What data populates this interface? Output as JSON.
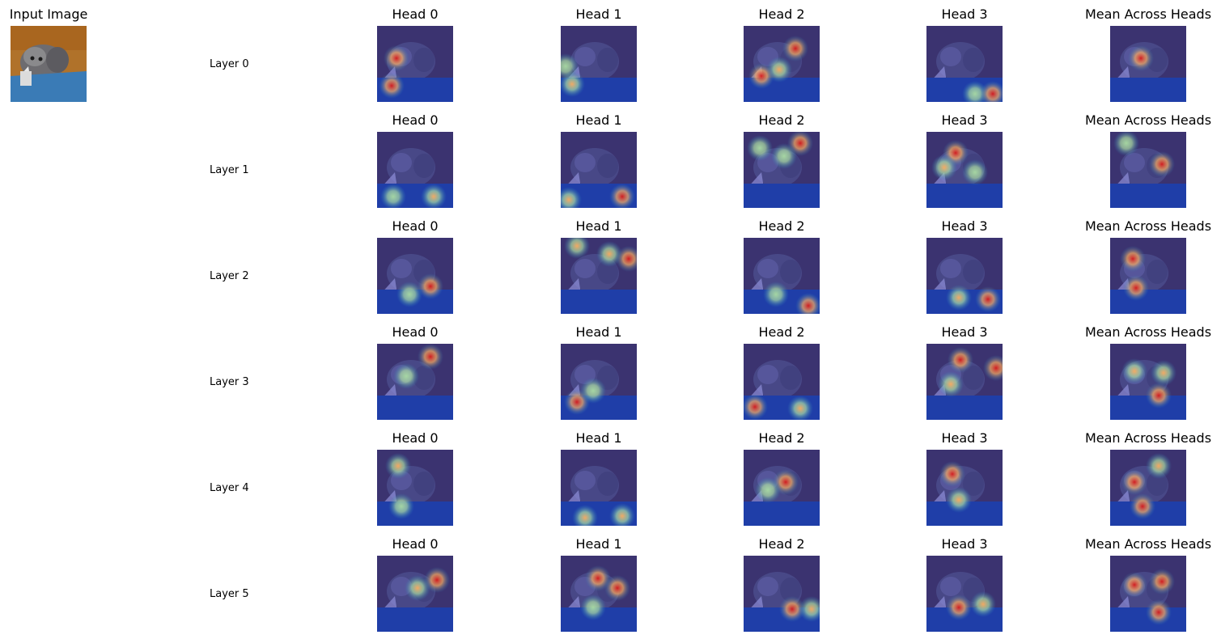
{
  "input": {
    "title": "Input Image"
  },
  "column_titles": [
    "Head 0",
    "Head 1",
    "Head 2",
    "Head 3",
    "Mean Across Heads"
  ],
  "rows": [
    {
      "label": "Layer 0",
      "titles": [
        "Head 0",
        "Head 1",
        "Head 2",
        "Head 3",
        "Mean Across Heads"
      ]
    },
    {
      "label": "Layer 1",
      "titles": [
        "Head 0",
        "Head 1",
        "Head 2",
        "Head 3",
        "Mean Across Heads"
      ]
    },
    {
      "label": "Layer 2",
      "titles": [
        "Head 0",
        "Head 1",
        "Head 2",
        "Head 3",
        "Mean Across Heads"
      ]
    },
    {
      "label": "Layer 3",
      "titles": [
        "Head 0",
        "Head 1",
        "Head 2",
        "Head 3",
        "Mean Across Heads"
      ]
    },
    {
      "label": "Layer 4",
      "titles": [
        "Head 0",
        "Head 1",
        "Head 2",
        "Head 3",
        "Mean Across Heads"
      ]
    },
    {
      "label": "Layer 5",
      "titles": [
        "Head 0",
        "Head 1",
        "Head 2",
        "Head 3",
        "Mean Across Heads"
      ]
    }
  ],
  "colors": {
    "background": "#ffffff",
    "overlay_base": "#2a2f9a",
    "hot": "#d7191c",
    "warm": "#fdae61",
    "mid": "#abdda4",
    "cool": "#2b83ba"
  }
}
